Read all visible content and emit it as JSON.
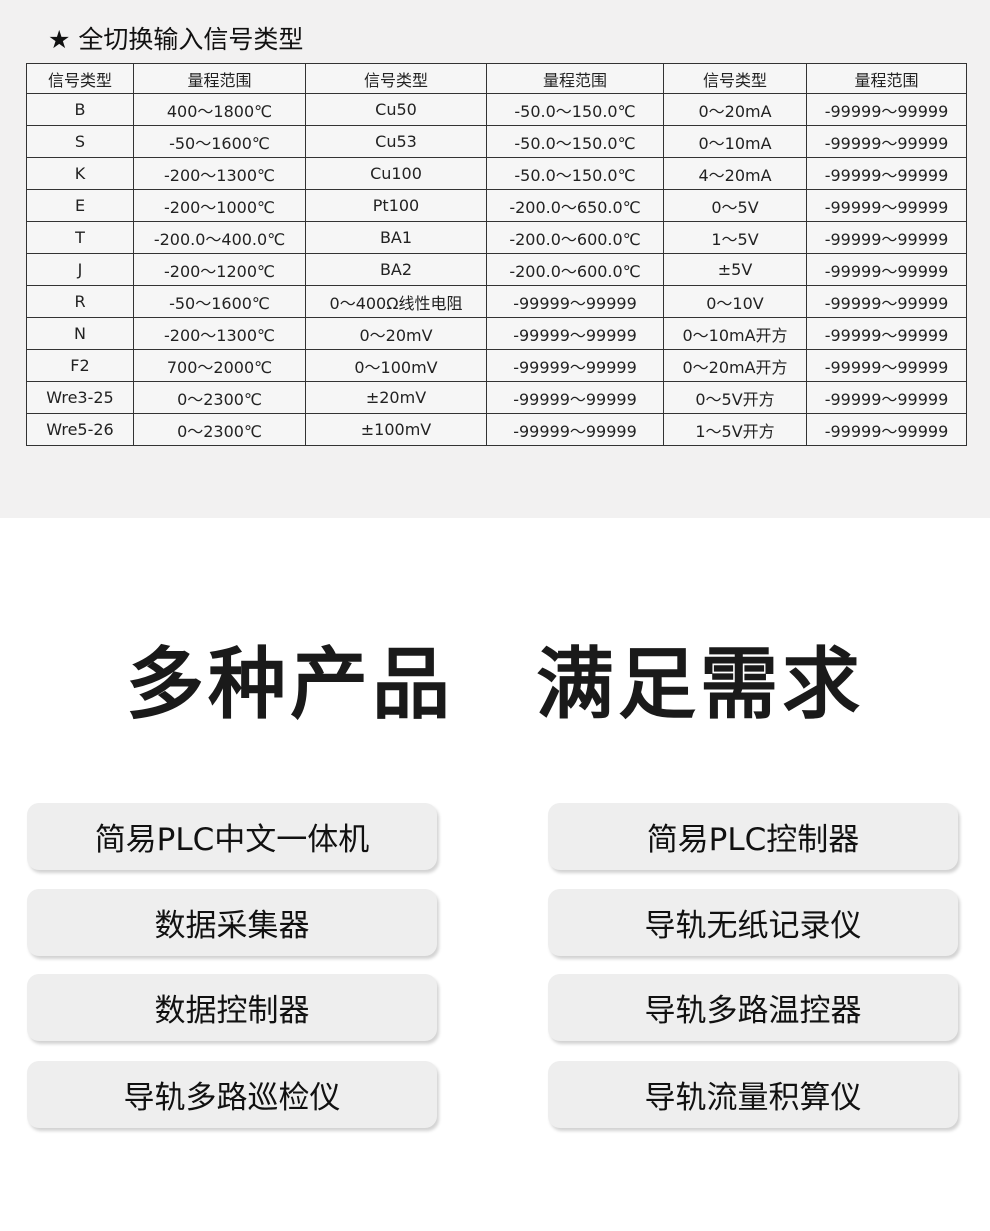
{
  "title": "★ 全切换输入信号类型",
  "table": {
    "headers": [
      "信号类型",
      "量程范围",
      "信号类型",
      "量程范围",
      "信号类型",
      "量程范围"
    ],
    "rows": [
      [
        "B",
        "400～1800℃",
        "Cu50",
        "-50.0～150.0℃",
        "0～20mA",
        "-99999～99999"
      ],
      [
        "S",
        "-50～1600℃",
        "Cu53",
        "-50.0～150.0℃",
        "0～10mA",
        "-99999～99999"
      ],
      [
        "K",
        "-200～1300℃",
        "Cu100",
        "-50.0～150.0℃",
        "4～20mA",
        "-99999～99999"
      ],
      [
        "E",
        "-200～1000℃",
        "Pt100",
        "-200.0～650.0℃",
        "0～5V",
        "-99999～99999"
      ],
      [
        "T",
        "-200.0～400.0℃",
        "BA1",
        "-200.0～600.0℃",
        "1～5V",
        "-99999～99999"
      ],
      [
        "J",
        "-200～1200℃",
        "BA2",
        "-200.0～600.0℃",
        "±5V",
        "-99999～99999"
      ],
      [
        "R",
        "-50～1600℃",
        "0～400Ω线性电阻",
        "-99999～99999",
        "0～10V",
        "-99999～99999"
      ],
      [
        "N",
        "-200～1300℃",
        "0～20mV",
        "-99999～99999",
        "0～10mA开方",
        "-99999～99999"
      ],
      [
        "F2",
        "700～2000℃",
        "0～100mV",
        "-99999～99999",
        "0～20mA开方",
        "-99999～99999"
      ],
      [
        "Wre3-25",
        "0～2300℃",
        "±20mV",
        "-99999～99999",
        "0～5V开方",
        "-99999～99999"
      ],
      [
        "Wre5-26",
        "0～2300℃",
        "±100mV",
        "-99999～99999",
        "1～5V开方",
        "-99999～99999"
      ]
    ]
  },
  "headline": "多种产品　满足需求",
  "products": [
    "简易PLC中文一体机",
    "简易PLC控制器",
    "数据采集器",
    "导轨无纸记录仪",
    "数据控制器",
    "导轨多路温控器",
    "导轨多路巡检仪",
    "导轨流量积算仪"
  ]
}
